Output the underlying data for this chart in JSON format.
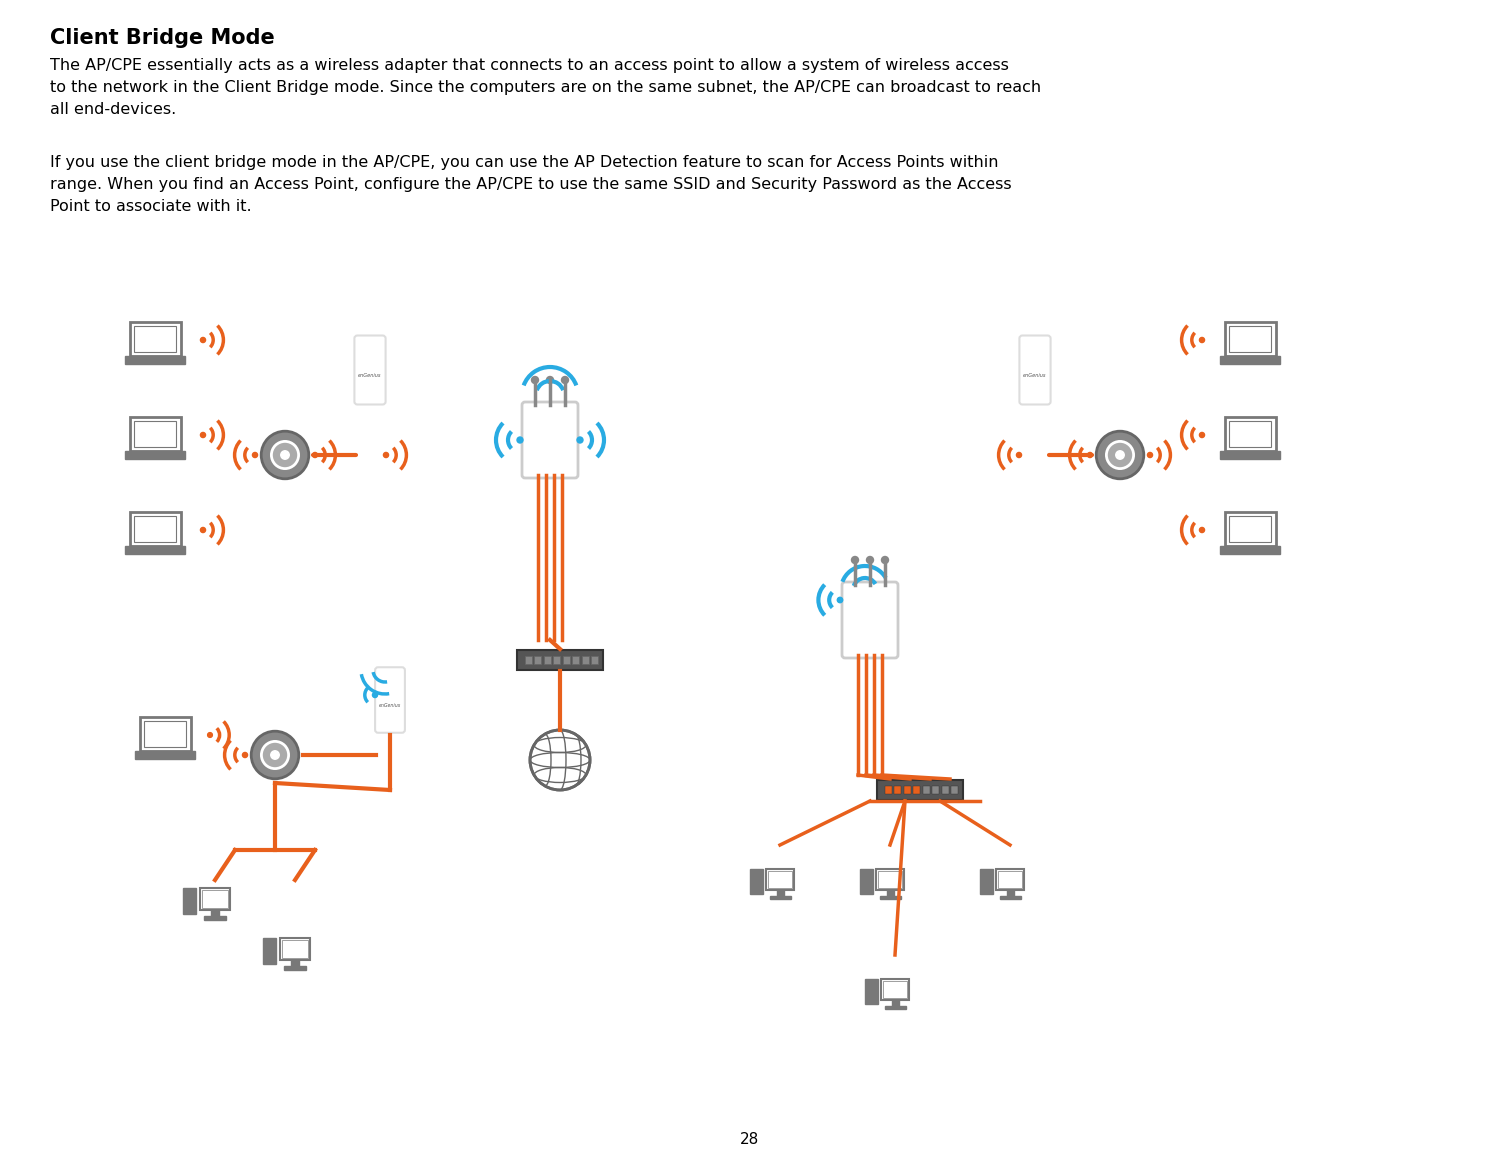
{
  "title": "Client Bridge Mode",
  "para1": "The AP/CPE essentially acts as a wireless adapter that connects to an access point to allow a system of wireless access\nto the network in the Client Bridge mode. Since the computers are on the same subnet, the AP/CPE can broadcast to reach\nall end-devices.",
  "para2": "If you use the client bridge mode in the AP/CPE, you can use the AP Detection feature to scan for Access Points within\nrange. When you find an Access Point, configure the AP/CPE to use the same SSID and Security Password as the Access\nPoint to associate with it.",
  "page_number": "28",
  "bg_color": "#ffffff",
  "text_color": "#000000",
  "orange": "#e8601c",
  "blue": "#29abe2",
  "gray_device": "#808080",
  "gray_light": "#999999",
  "gray_dark": "#555555"
}
